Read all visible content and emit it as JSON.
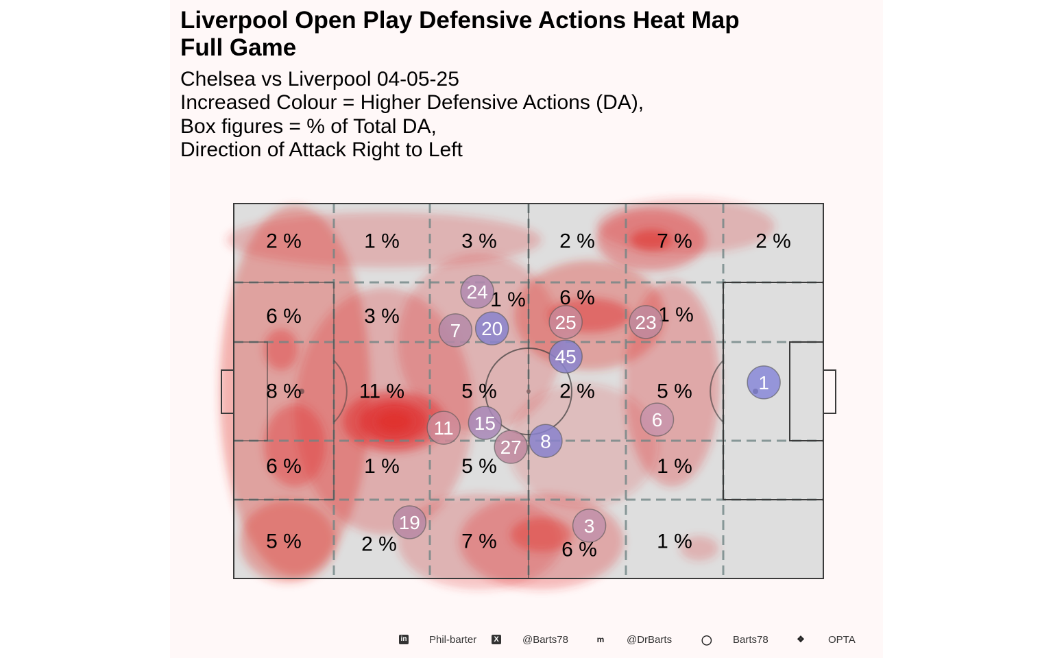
{
  "header": {
    "title_line1": "Liverpool  Open Play Defensive Actions Heat Map",
    "title_line2": "Full Game",
    "subtitle_lines": [
      "Chelsea vs Liverpool 04-05-25",
      "Increased Colour = Higher Defensive Actions (DA),",
      "Box figures = % of Total DA,",
      "Direction of Attack Right to Left"
    ]
  },
  "chart_data": {
    "type": "heatmap",
    "title": "Liverpool  Open Play Defensive Actions Heat Map",
    "zones_rows": 5,
    "zones_cols": 6,
    "zone_percentages": [
      [
        "2 %",
        "1 %",
        "3 %",
        "2 %",
        "7 %",
        "2 %"
      ],
      [
        "6 %",
        "3 %",
        "1 %",
        "6 %",
        "1 %",
        ""
      ],
      [
        "8 %",
        "11 %",
        "5 %",
        "2 %",
        "5 %",
        ""
      ],
      [
        "6 %",
        "1 %",
        "5 %",
        "",
        "1 %",
        ""
      ],
      [
        "5 %",
        "2 %",
        "7 %",
        "6 %",
        "1 %",
        ""
      ]
    ],
    "players": [
      {
        "number": "24",
        "x": 0.413,
        "y": 0.235,
        "color": "#b28ab0"
      },
      {
        "number": "7",
        "x": 0.376,
        "y": 0.338,
        "color": "#b58aa8"
      },
      {
        "number": "20",
        "x": 0.438,
        "y": 0.333,
        "color": "#8a82cc"
      },
      {
        "number": "25",
        "x": 0.563,
        "y": 0.316,
        "color": "#c98a9a"
      },
      {
        "number": "23",
        "x": 0.699,
        "y": 0.316,
        "color": "#c08a9e"
      },
      {
        "number": "45",
        "x": 0.563,
        "y": 0.408,
        "color": "#8a82cc"
      },
      {
        "number": "1",
        "x": 0.899,
        "y": 0.477,
        "color": "#8888d8"
      },
      {
        "number": "15",
        "x": 0.426,
        "y": 0.585,
        "color": "#a888b8"
      },
      {
        "number": "11",
        "x": 0.356,
        "y": 0.598,
        "color": "#cf8a98"
      },
      {
        "number": "27",
        "x": 0.47,
        "y": 0.649,
        "color": "#bf8aa0"
      },
      {
        "number": "8",
        "x": 0.529,
        "y": 0.633,
        "color": "#8a82cc"
      },
      {
        "number": "6",
        "x": 0.718,
        "y": 0.576,
        "color": "#c894ac"
      },
      {
        "number": "19",
        "x": 0.298,
        "y": 0.85,
        "color": "#b88aa6"
      },
      {
        "number": "3",
        "x": 0.603,
        "y": 0.859,
        "color": "#c290aa"
      }
    ],
    "heat_color": "#e0302f",
    "player_stroke": "#555555"
  },
  "footer": {
    "items": [
      {
        "icon": "linkedin-icon",
        "label": "Phil-barter"
      },
      {
        "icon": "x-twitter-icon",
        "label": "@Barts78"
      },
      {
        "icon": "mastodon-icon",
        "label": "@DrBarts"
      },
      {
        "icon": "github-icon",
        "label": "Barts78"
      },
      {
        "icon": "dropbox-icon",
        "label": "OPTA"
      }
    ]
  }
}
